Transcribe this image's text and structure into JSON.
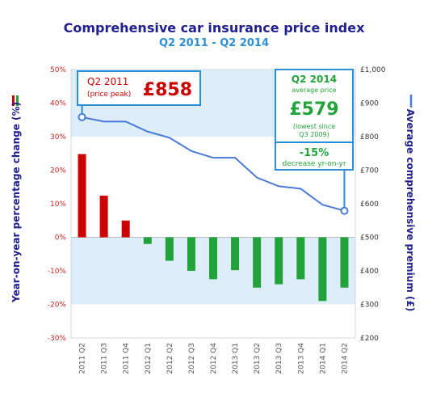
{
  "colors": {
    "title": "#1f1f8f",
    "subtitle": "#2a8fd8",
    "red": "#cc0000",
    "green": "#22a33a",
    "line": "#4a7ad8",
    "box_border": "#2a8fd8",
    "band": "#ddeefa",
    "left_axis_text": "#cc2222",
    "right_axis_text": "#333333",
    "axis_title": "#1f1f8f"
  },
  "chart_data": {
    "type": "bar",
    "title": "Comprehensive car insurance price index",
    "subtitle": "Q2 2011 - Q2 2014",
    "categories": [
      "2011 Q2",
      "2011 Q3",
      "2011 Q4",
      "2012 Q1",
      "2012 Q2",
      "2012 Q3",
      "2012 Q4",
      "2013 Q1",
      "2013 Q2",
      "2013 Q3",
      "2013 Q4",
      "2014 Q1",
      "2014 Q2"
    ],
    "series": [
      {
        "type": "bar",
        "axis": "left",
        "values": [
          24.8,
          12.4,
          5.0,
          -2.0,
          -7.0,
          -10.0,
          -12.5,
          -9.8,
          -15.0,
          -14.0,
          -12.5,
          -19.0,
          -15.0
        ]
      },
      {
        "type": "line",
        "axis": "right",
        "values": [
          858,
          845,
          845,
          815,
          797,
          757,
          737,
          737,
          678,
          652,
          645,
          597,
          579
        ]
      }
    ],
    "ylabel_left": "Year-on-year percentage change (%)",
    "ylabel_right": "Average comprehensive premium (£)",
    "ylim_left": [
      -30,
      50
    ],
    "ylim_right": [
      200,
      1000
    ],
    "yticks_left": [
      "-30%",
      "-20%",
      "-10%",
      "0%",
      "10%",
      "20%",
      "30%",
      "40%",
      "50%"
    ],
    "yticks_right": [
      "£200",
      "£300",
      "£400",
      "£500",
      "£600",
      "£700",
      "£800",
      "£900",
      "£1,000"
    ],
    "grid": false,
    "annotations": {
      "peak": {
        "label": "Q2 2011",
        "sublabel": "(price peak)",
        "value": "£858"
      },
      "latest": {
        "label": "Q2 2014",
        "sublabel": "average price",
        "value": "£579",
        "note": "(lowest since Q3 2009)"
      },
      "change": {
        "value": "-15%",
        "note": "decrease yr-on-yr"
      }
    }
  }
}
